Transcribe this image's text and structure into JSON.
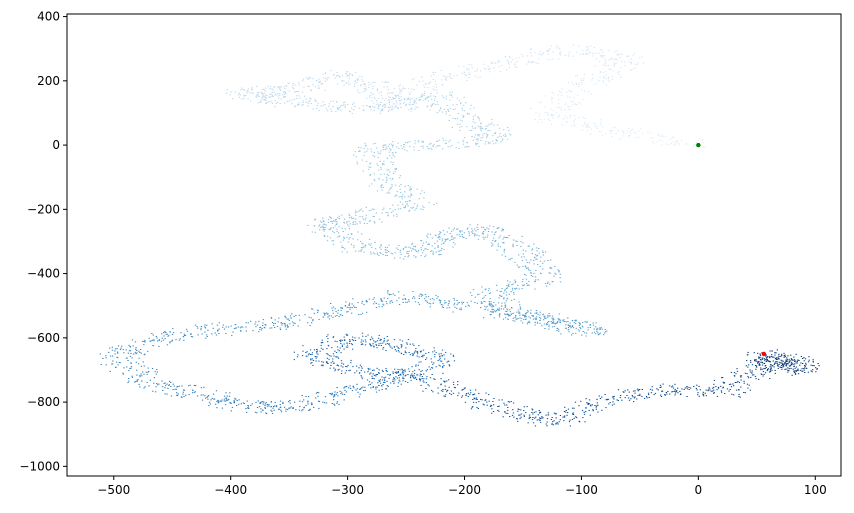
{
  "chart_data": {
    "type": "scatter",
    "title": "",
    "xlabel": "",
    "ylabel": "",
    "xlim": [
      -540,
      122
    ],
    "ylim": [
      -1030,
      408
    ],
    "x_ticks": [
      -500,
      -400,
      -300,
      -200,
      -100,
      0,
      100
    ],
    "y_ticks": [
      -1000,
      -800,
      -600,
      -400,
      -200,
      0,
      200,
      400
    ],
    "x_tick_labels": [
      "−500",
      "−400",
      "−300",
      "−200",
      "−100",
      "0",
      "100"
    ],
    "y_tick_labels": [
      "−1000",
      "−800",
      "−600",
      "−400",
      "−200",
      "0",
      "200",
      "400"
    ],
    "grid": false,
    "legend": "none",
    "colormap": "Blues",
    "colors": {
      "start_point": "#008000",
      "end_point": "#ff0000"
    },
    "walk_waypoints": {
      "x": [
        0,
        -70,
        -130,
        -100,
        -60,
        -110,
        -170,
        -230,
        -260,
        -270,
        -310,
        -350,
        -390,
        -340,
        -280,
        -220,
        -200,
        -170,
        -230,
        -280,
        -270,
        -240,
        -290,
        -320,
        -290,
        -240,
        -220,
        -180,
        -150,
        -130,
        -180,
        -160,
        -120,
        -90,
        -140,
        -200,
        -250,
        -300,
        -350,
        -400,
        -460,
        -500,
        -470,
        -420,
        -380,
        -340,
        -290,
        -250,
        -220,
        -260,
        -300,
        -330,
        -300,
        -240,
        -200,
        -160,
        -120,
        -80,
        -30,
        20,
        50,
        75,
        90,
        65,
        56
      ],
      "y": [
        0,
        40,
        90,
        190,
        260,
        300,
        250,
        200,
        120,
        170,
        220,
        170,
        160,
        130,
        110,
        150,
        80,
        20,
        0,
        -10,
        -100,
        -180,
        -230,
        -250,
        -320,
        -340,
        -290,
        -260,
        -330,
        -410,
        -460,
        -520,
        -550,
        -580,
        -540,
        -500,
        -470,
        -510,
        -550,
        -570,
        -600,
        -660,
        -740,
        -780,
        -820,
        -810,
        -760,
        -720,
        -660,
        -620,
        -600,
        -650,
        -700,
        -720,
        -780,
        -830,
        -860,
        -800,
        -760,
        -770,
        -700,
        -660,
        -700,
        -680,
        -650
      ]
    },
    "start_point": {
      "x": 0,
      "y": 0
    },
    "end_point": {
      "x": 56,
      "y": -650
    }
  }
}
